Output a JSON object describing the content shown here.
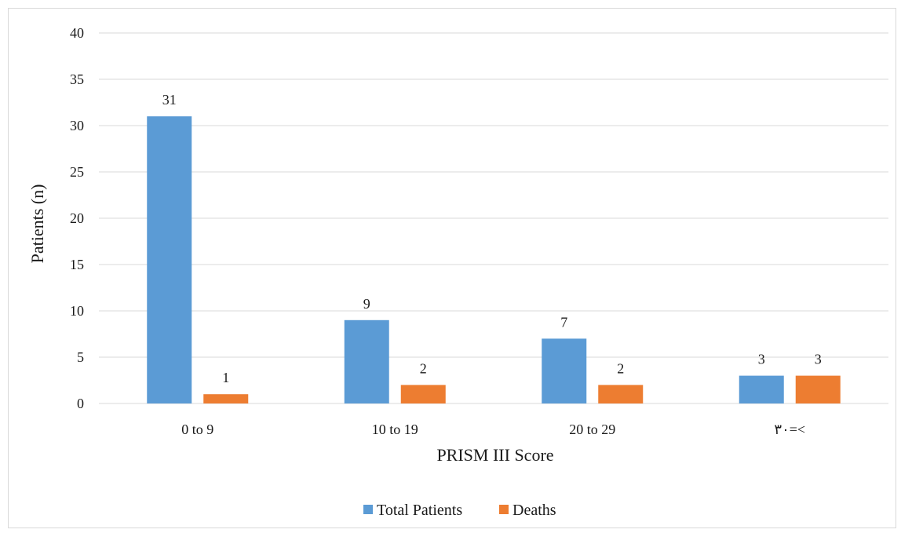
{
  "chart_data": {
    "type": "bar",
    "categories": [
      "0 to 9",
      "10 to 19",
      "20 to 29",
      "٣٠=<"
    ],
    "series": [
      {
        "name": "Total Patients",
        "values": [
          31,
          9,
          7,
          3
        ],
        "color": "#5b9bd5"
      },
      {
        "name": "Deaths",
        "values": [
          1,
          2,
          2,
          3
        ],
        "color": "#ed7d31"
      }
    ],
    "xlabel": "PRISM III Score",
    "ylabel": "Patients (n)",
    "ylim": [
      0,
      40
    ],
    "yticks": [
      0,
      5,
      10,
      15,
      20,
      25,
      30,
      35,
      40
    ],
    "grid": true,
    "legend_position": "bottom"
  }
}
